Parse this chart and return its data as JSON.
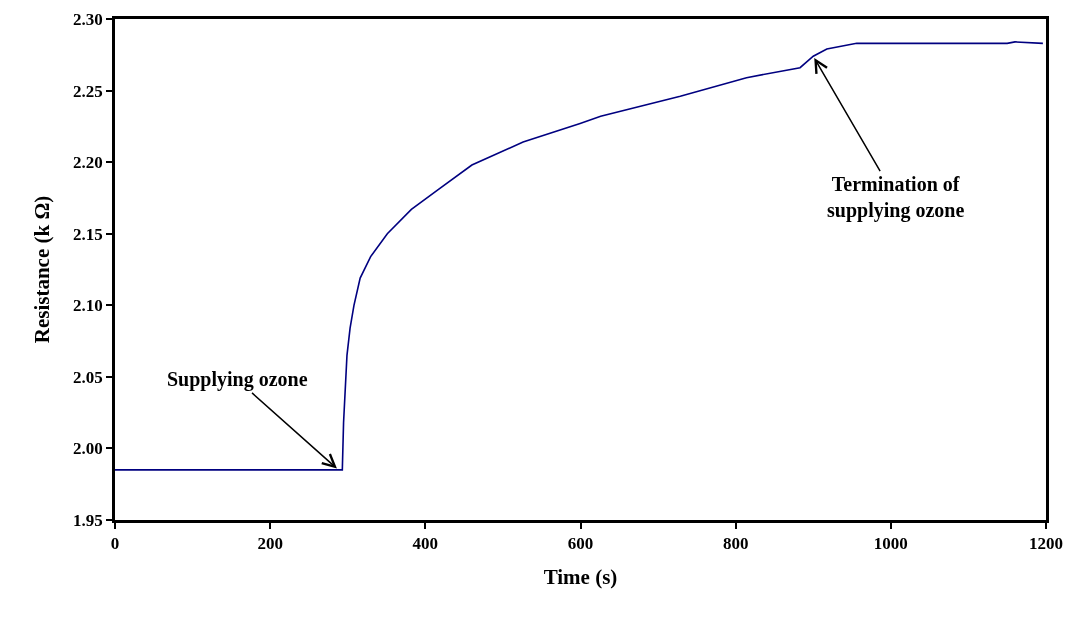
{
  "chart_data": {
    "type": "line",
    "xlabel": "Time (s)",
    "ylabel": "Resistance (k Ω)",
    "x": [
      0,
      100,
      200,
      288,
      293,
      294.6,
      299,
      303,
      308,
      316,
      329.5,
      351,
      382,
      417,
      460,
      526,
      599.5,
      626,
      728.6,
      814,
      883,
      900,
      917.5,
      956,
      1000,
      1150,
      1160,
      1196
    ],
    "series": [
      {
        "color": "#000080",
        "values": [
          1.985,
          1.985,
          1.985,
          1.985,
          1.985,
          2.018,
          2.065,
          2.084,
          2.1,
          2.119,
          2.134,
          2.15,
          2.167,
          2.181,
          2.198,
          2.214,
          2.227,
          2.232,
          2.246,
          2.259,
          2.266,
          2.274,
          2.279,
          2.283,
          2.283,
          2.283,
          2.284,
          2.283
        ]
      }
    ],
    "annotations": [
      {
        "text": "Supplying ozone",
        "x": 288,
        "y": 1.985
      },
      {
        "text": "Termination of\nsupplying ozone",
        "x": 900,
        "y": 2.274
      }
    ],
    "xlim": [
      0,
      1200
    ],
    "xticks": [
      0,
      200,
      400,
      600,
      800,
      1000,
      1200
    ],
    "ylim": [
      1.95,
      2.3
    ],
    "yticks": [
      1.95,
      {
        "value": 2.0,
        "label": "2.00"
      },
      2.05,
      {
        "value": 2.1,
        "label": "2.10"
      },
      2.15,
      {
        "value": 2.2,
        "label": "2.20"
      },
      2.25,
      {
        "value": 2.3,
        "label": "2.30"
      }
    ],
    "grid": false,
    "marker": "none",
    "line_style": "solid"
  }
}
